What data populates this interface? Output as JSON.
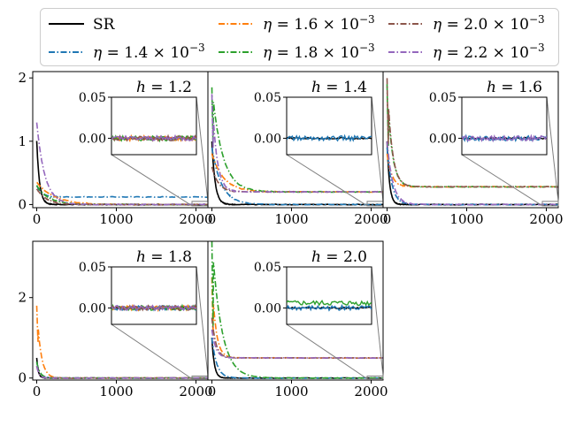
{
  "legend": {
    "placement": "top",
    "entries": [
      {
        "label": "SR",
        "color": "#000000",
        "dash": "solid"
      },
      {
        "label": "η = 1.4 × 10−3",
        "sym": "η",
        "mid": " = 1.4 × 10",
        "exp": "−3",
        "color": "#1f77b4",
        "dash": "dashdot"
      },
      {
        "label": "η = 1.6 × 10−3",
        "sym": "η",
        "mid": " = 1.6 × 10",
        "exp": "−3",
        "color": "#ff7f0e",
        "dash": "dashdot"
      },
      {
        "label": "η = 1.8 × 10−3",
        "sym": "η",
        "mid": " = 1.8 × 10",
        "exp": "−3",
        "color": "#2ca02c",
        "dash": "dashdot"
      },
      {
        "label": "η = 2.0 × 10−3",
        "sym": "η",
        "mid": " = 2.0 × 10",
        "exp": "−3",
        "color": "#8c564b",
        "dash": "dashdot"
      },
      {
        "label": "η = 2.2 × 10−3",
        "sym": "η",
        "mid": " = 2.2 × 10",
        "exp": "−3",
        "color": "#9467bd",
        "dash": "dashdot"
      }
    ]
  },
  "chart_data": [
    {
      "type": "line",
      "title": "h = 1.2",
      "title_var": "h",
      "title_rest": " = 1.2",
      "xlim": [
        -50,
        2150
      ],
      "ylim": [
        -0.05,
        2.1
      ],
      "xticks": [
        0,
        1000,
        2000
      ],
      "xtick_labels": [
        "0",
        "1000",
        "2000"
      ],
      "yticks": [
        0,
        1,
        2
      ],
      "ytick_labels": [
        "0",
        "1",
        "2"
      ],
      "inset": {
        "xlim": [
          1950,
          2150
        ],
        "ylim": [
          -0.02,
          0.05
        ],
        "yticks": [
          0.0,
          0.05
        ],
        "ytick_labels": [
          "0.00",
          "0.05"
        ]
      },
      "series": [
        {
          "name": "SR",
          "start": 1.0,
          "plateau": 0.0,
          "decay": 35
        },
        {
          "name": "η = 1.4 × 10−3",
          "start": 0.3,
          "plateau": 0.12,
          "decay": 60
        },
        {
          "name": "η = 1.6 × 10−3",
          "start": 0.35,
          "plateau": 0.0,
          "decay": 220
        },
        {
          "name": "η = 1.8 × 10−3",
          "start": 0.3,
          "plateau": 0.0,
          "decay": 150
        },
        {
          "name": "η = 2.0 × 10−3",
          "start": 0.25,
          "plateau": 0.0,
          "decay": 120
        },
        {
          "name": "η = 2.2 × 10−3",
          "start": 1.3,
          "plateau": 0.0,
          "decay": 100
        }
      ]
    },
    {
      "type": "line",
      "title": "h = 1.4",
      "title_var": "h",
      "title_rest": " = 1.4",
      "xlim": [
        -50,
        2150
      ],
      "ylim": [
        -0.05,
        2.1
      ],
      "xticks": [
        0,
        1000,
        2000
      ],
      "xtick_labels": [
        "0",
        "1000",
        "2000"
      ],
      "yticks": [],
      "ytick_labels": [],
      "inset": {
        "xlim": [
          1950,
          2150
        ],
        "ylim": [
          -0.02,
          0.05
        ],
        "yticks": [
          0.0,
          0.05
        ],
        "ytick_labels": [
          "0.00",
          "0.05"
        ]
      },
      "series": [
        {
          "name": "SR",
          "start": 1.0,
          "plateau": 0.0,
          "decay": 40
        },
        {
          "name": "η = 1.4 × 10−3",
          "start": 0.9,
          "plateau": 0.0,
          "decay": 120
        },
        {
          "name": "η = 1.6 × 10−3",
          "start": 0.8,
          "plateau": 0.2,
          "decay": 150
        },
        {
          "name": "η = 1.8 × 10−3",
          "start": 1.85,
          "plateau": 0.2,
          "decay": 130
        },
        {
          "name": "η = 2.0 × 10−3",
          "start": 0.6,
          "plateau": 0.2,
          "decay": 80
        },
        {
          "name": "η = 2.2 × 10−3",
          "start": 1.75,
          "plateau": 0.2,
          "decay": 60
        }
      ]
    },
    {
      "type": "line",
      "title": "h = 1.6",
      "title_var": "h",
      "title_rest": " = 1.6",
      "xlim": [
        -50,
        2150
      ],
      "ylim": [
        -0.05,
        2.1
      ],
      "xticks": [
        0,
        1000,
        2000
      ],
      "xtick_labels": [
        "0",
        "1000",
        "2000"
      ],
      "yticks": [],
      "ytick_labels": [],
      "inset": {
        "xlim": [
          1950,
          2150
        ],
        "ylim": [
          -0.02,
          0.05
        ],
        "yticks": [
          0.0,
          0.05
        ],
        "ytick_labels": [
          "0.00",
          "0.05"
        ]
      },
      "series": [
        {
          "name": "SR",
          "start": 1.0,
          "plateau": 0.0,
          "decay": 30
        },
        {
          "name": "η = 1.4 × 10−3",
          "start": 0.9,
          "plateau": 0.0,
          "decay": 60
        },
        {
          "name": "η = 1.6 × 10−3",
          "start": 0.8,
          "plateau": 0.28,
          "decay": 60
        },
        {
          "name": "η = 1.8 × 10−3",
          "start": 1.9,
          "plateau": 0.28,
          "decay": 60
        },
        {
          "name": "η = 2.0 × 10−3",
          "start": 2.0,
          "plateau": 0.28,
          "decay": 60
        },
        {
          "name": "η = 2.2 × 10−3",
          "start": 1.0,
          "plateau": 0.0,
          "decay": 70
        }
      ]
    },
    {
      "type": "line",
      "title": "h = 1.8",
      "title_var": "h",
      "title_rest": " = 1.8",
      "xlim": [
        -50,
        2150
      ],
      "ylim": [
        -0.05,
        3.4
      ],
      "xticks": [
        0,
        1000,
        2000
      ],
      "xtick_labels": [
        "0",
        "1000",
        "2000"
      ],
      "yticks": [
        0,
        2
      ],
      "ytick_labels": [
        "0",
        "2"
      ],
      "inset": {
        "xlim": [
          1950,
          2150
        ],
        "ylim": [
          -0.02,
          0.05
        ],
        "yticks": [
          0.0,
          0.05
        ],
        "ytick_labels": [
          "0.00",
          "0.05"
        ]
      },
      "series": [
        {
          "name": "SR",
          "start": 0.5,
          "plateau": 0.0,
          "decay": 20
        },
        {
          "name": "η = 1.4 × 10−3",
          "start": 0.4,
          "plateau": 0.0,
          "decay": 40
        },
        {
          "name": "η = 1.6 × 10−3",
          "start": 1.8,
          "plateau": 0.0,
          "decay": 50
        },
        {
          "name": "η = 1.8 × 10−3",
          "start": 0.4,
          "plateau": 0.0,
          "decay": 40
        },
        {
          "name": "η = 2.0 × 10−3",
          "start": 0.3,
          "plateau": 0.0,
          "decay": 30
        },
        {
          "name": "η = 2.2 × 10−3",
          "start": 0.3,
          "plateau": 0.0,
          "decay": 30
        }
      ]
    },
    {
      "type": "line",
      "title": "h = 2.0",
      "title_var": "h",
      "title_rest": " = 2.0",
      "xlim": [
        -50,
        2150
      ],
      "ylim": [
        -0.05,
        3.4
      ],
      "xticks": [
        0,
        1000,
        2000
      ],
      "xtick_labels": [
        "0",
        "1000",
        "2000"
      ],
      "yticks": [],
      "ytick_labels": [],
      "inset": {
        "xlim": [
          1950,
          2150
        ],
        "ylim": [
          -0.02,
          0.05
        ],
        "yticks": [
          0.0,
          0.05
        ],
        "ytick_labels": [
          "0.00",
          "0.05"
        ]
      },
      "series": [
        {
          "name": "SR",
          "start": 1.0,
          "plateau": 0.0,
          "decay": 30
        },
        {
          "name": "η = 1.4 × 10−3",
          "start": 1.0,
          "plateau": 0.0,
          "decay": 60
        },
        {
          "name": "η = 1.6 × 10−3",
          "start": 2.5,
          "plateau": 0.5,
          "decay": 50
        },
        {
          "name": "η = 1.8 × 10−3",
          "start": 3.4,
          "plateau": 0.0,
          "decay": 120
        },
        {
          "name": "η = 2.0 × 10−3",
          "start": 1.5,
          "plateau": 0.5,
          "decay": 50
        },
        {
          "name": "η = 2.2 × 10−3",
          "start": 1.2,
          "plateau": 0.5,
          "decay": 50
        }
      ]
    }
  ]
}
